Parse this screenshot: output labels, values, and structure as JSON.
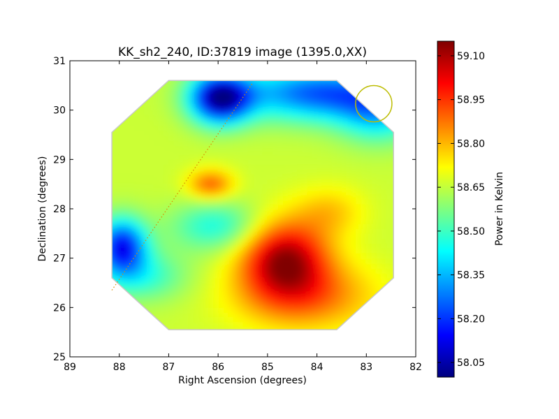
{
  "chart_data": {
    "type": "heatmap",
    "title": "KK_sh2_240, ID:37819 image (1395.0,XX)",
    "xlabel": "Right Ascension (degrees)",
    "ylabel": "Declination (degrees)",
    "xlim": [
      89,
      82
    ],
    "ylim": [
      25,
      31
    ],
    "xticks": [
      "89",
      "88",
      "87",
      "86",
      "85",
      "84",
      "83",
      "82"
    ],
    "yticks": [
      "25",
      "26",
      "27",
      "28",
      "29",
      "30",
      "31"
    ],
    "colorbar": {
      "label": "Power in Kelvin",
      "vmin": 58.0,
      "vmax": 59.15,
      "ticks": [
        "58.05",
        "58.20",
        "58.35",
        "58.50",
        "58.65",
        "58.80",
        "58.95",
        "59.10"
      ],
      "colormap": "jet"
    },
    "map_footprint_corners": [
      [
        88.15,
        29.55
      ],
      [
        87.0,
        30.6
      ],
      [
        83.6,
        30.6
      ],
      [
        82.45,
        29.55
      ],
      [
        82.45,
        26.6
      ],
      [
        83.6,
        25.55
      ],
      [
        87.0,
        25.55
      ],
      [
        88.15,
        26.6
      ]
    ],
    "sources": [
      {
        "name": "southern-warm-peak",
        "ra": 84.7,
        "dec": 26.95,
        "value": 59.1
      },
      {
        "name": "northern-warm-blob",
        "ra": 86.2,
        "dec": 28.45,
        "value": 58.9
      },
      {
        "name": "northern-cold-spot",
        "ra": 86.0,
        "dec": 30.2,
        "value": 58.02
      },
      {
        "name": "western-cold-spot",
        "ra": 88.0,
        "dec": 27.2,
        "value": 58.15
      }
    ],
    "beam_circle": {
      "ra": 82.85,
      "dec": 30.13,
      "color": "#bcbc00"
    },
    "dotted_line": {
      "from": [
        88.15,
        26.35
      ],
      "to": [
        85.3,
        30.55
      ],
      "color": "#d98c00"
    }
  }
}
